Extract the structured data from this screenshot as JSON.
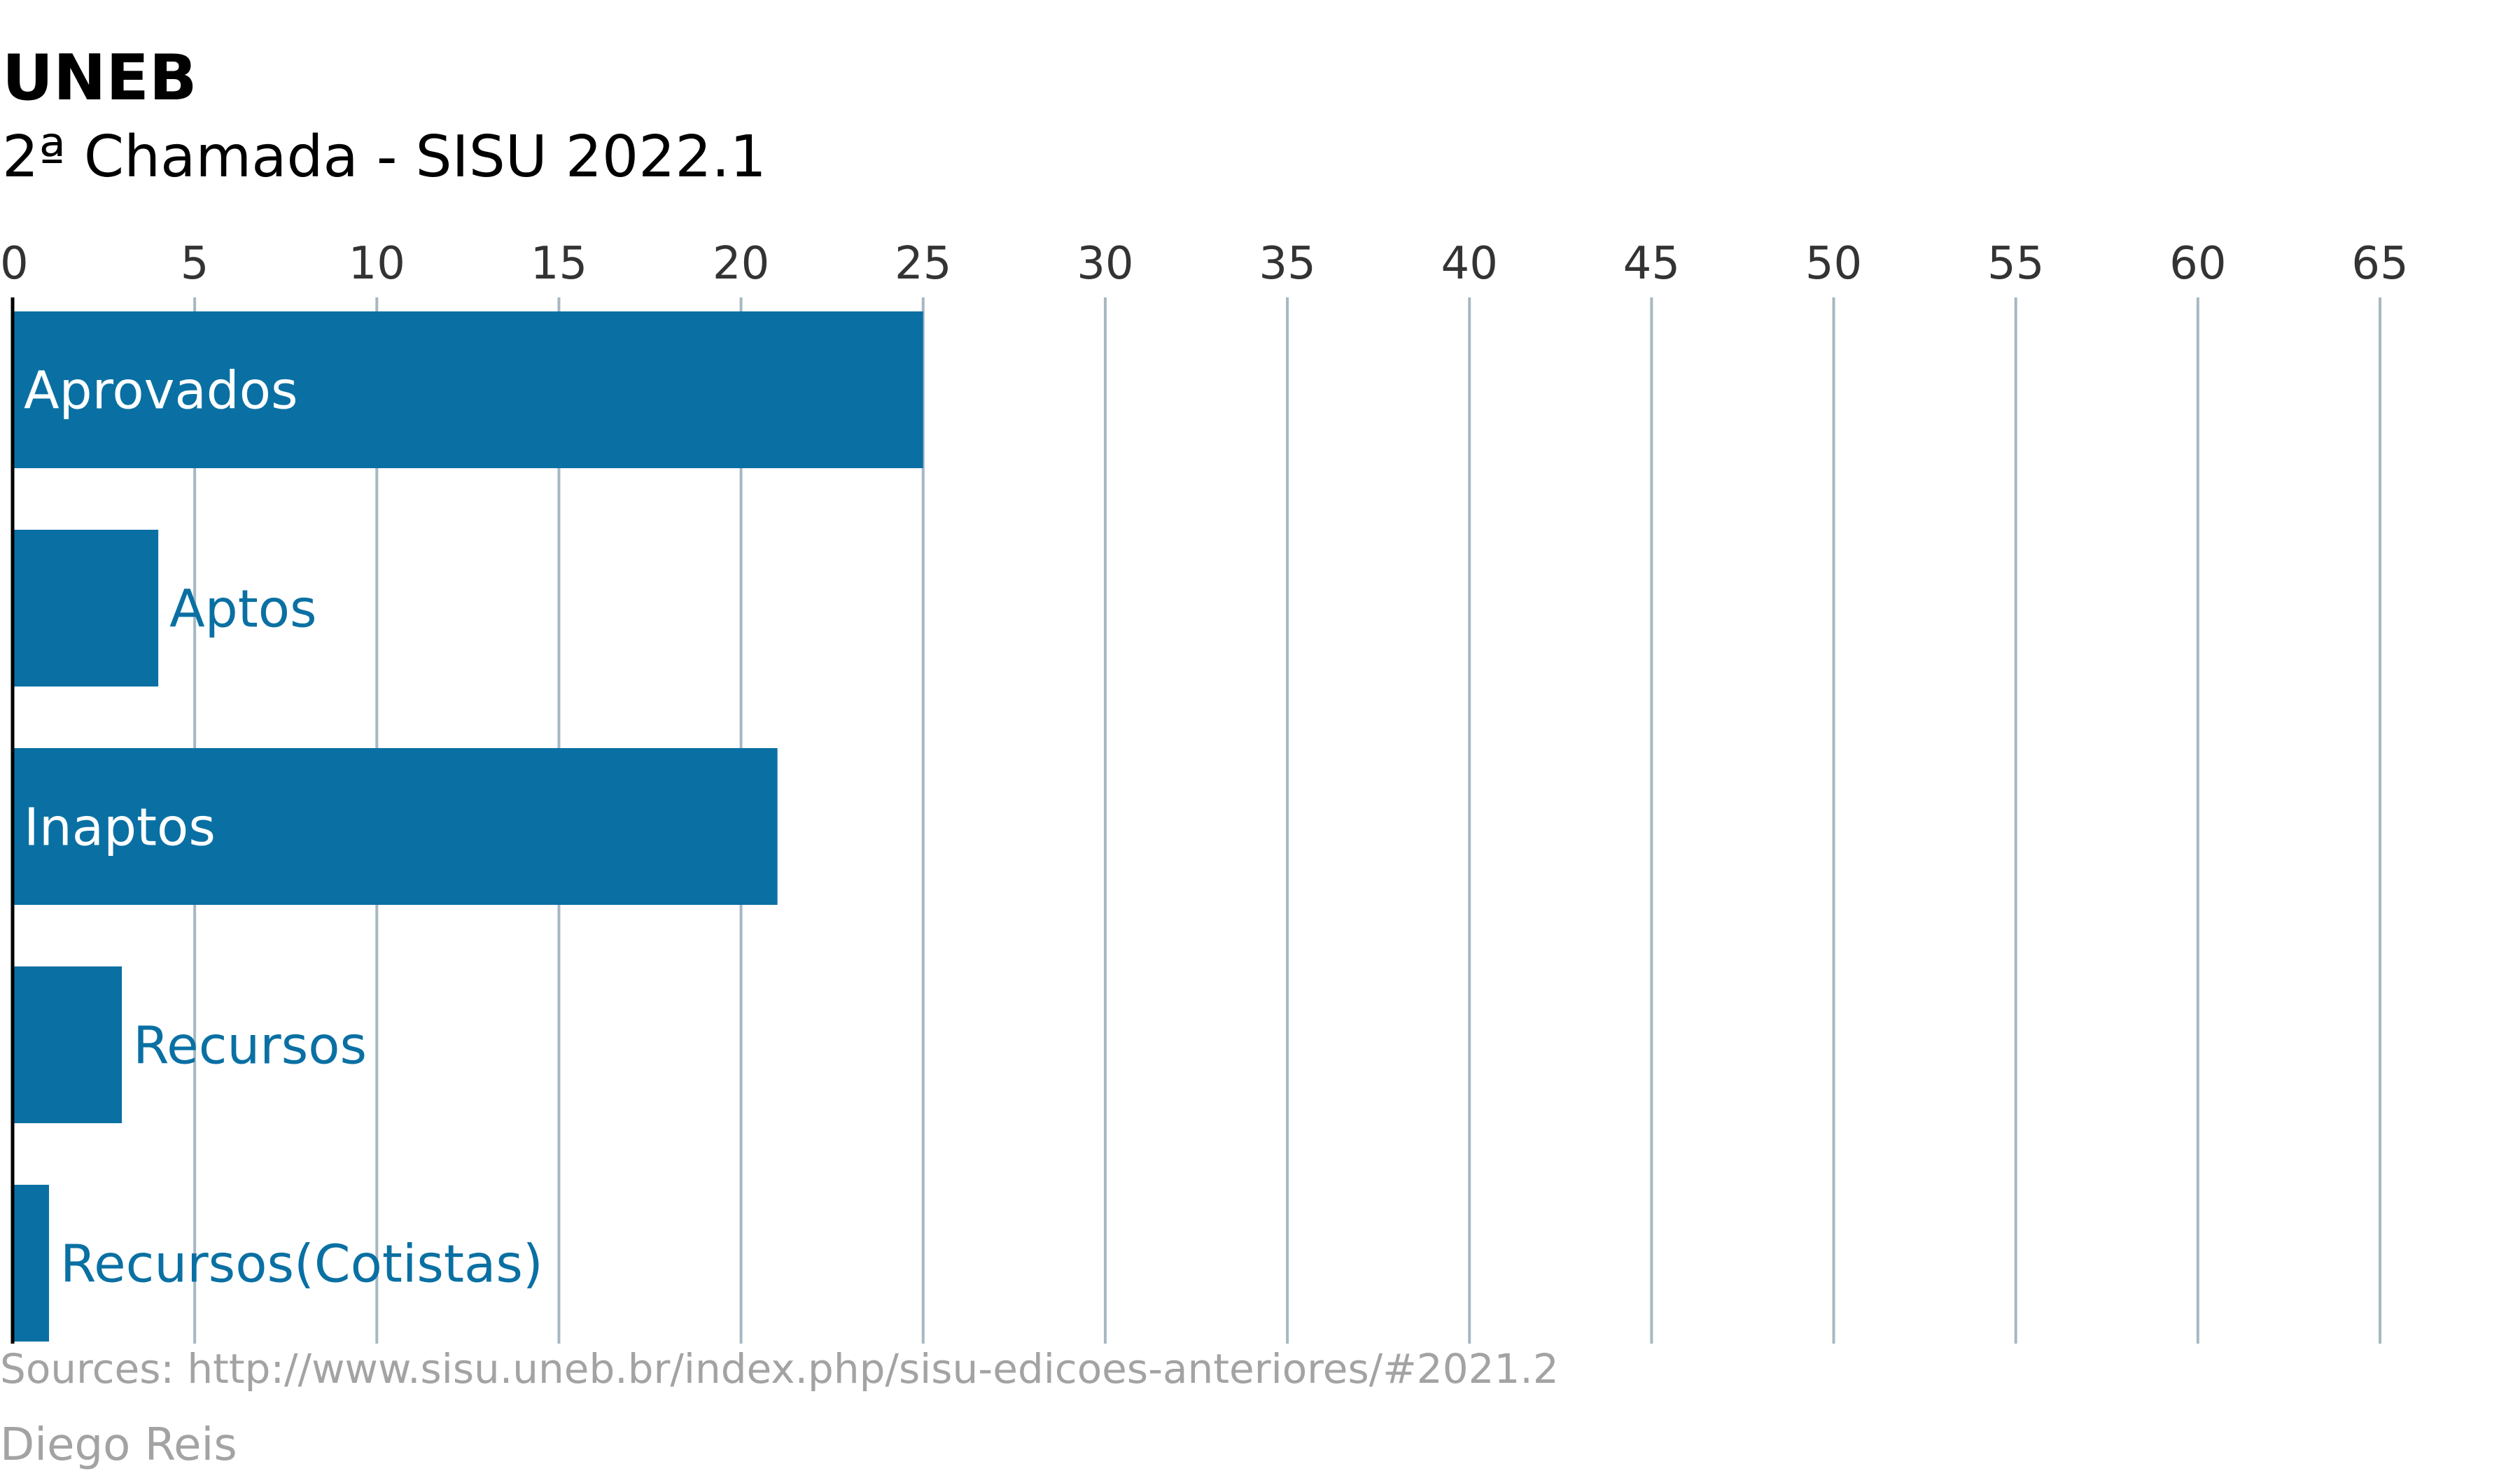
{
  "header": {
    "title": "UNEB",
    "subtitle": "2ª Chamada - SISU 2022.1"
  },
  "footer": {
    "source": "Sources: http://www.sisu.uneb.br/index.php/sisu-edicoes-anteriores/#2021.2",
    "author": "Diego Reis"
  },
  "colors": {
    "bar": "#0a70a3",
    "grid": "#a6b8c2",
    "axis": "#000000",
    "label_inside": "#ffffff",
    "label_outside": "#0a70a3"
  },
  "chart_data": {
    "type": "bar",
    "orientation": "horizontal",
    "categories": [
      "Aprovados",
      "Aptos",
      "Inaptos",
      "Recursos",
      "Recursos(Cotistas)"
    ],
    "values": [
      25,
      4,
      21,
      3,
      1
    ],
    "xlim": [
      0,
      65
    ],
    "xticks": [
      0,
      5,
      10,
      15,
      20,
      25,
      30,
      35,
      40,
      45,
      50,
      55,
      60,
      65
    ],
    "xaxis_position": "top",
    "grid": true
  }
}
